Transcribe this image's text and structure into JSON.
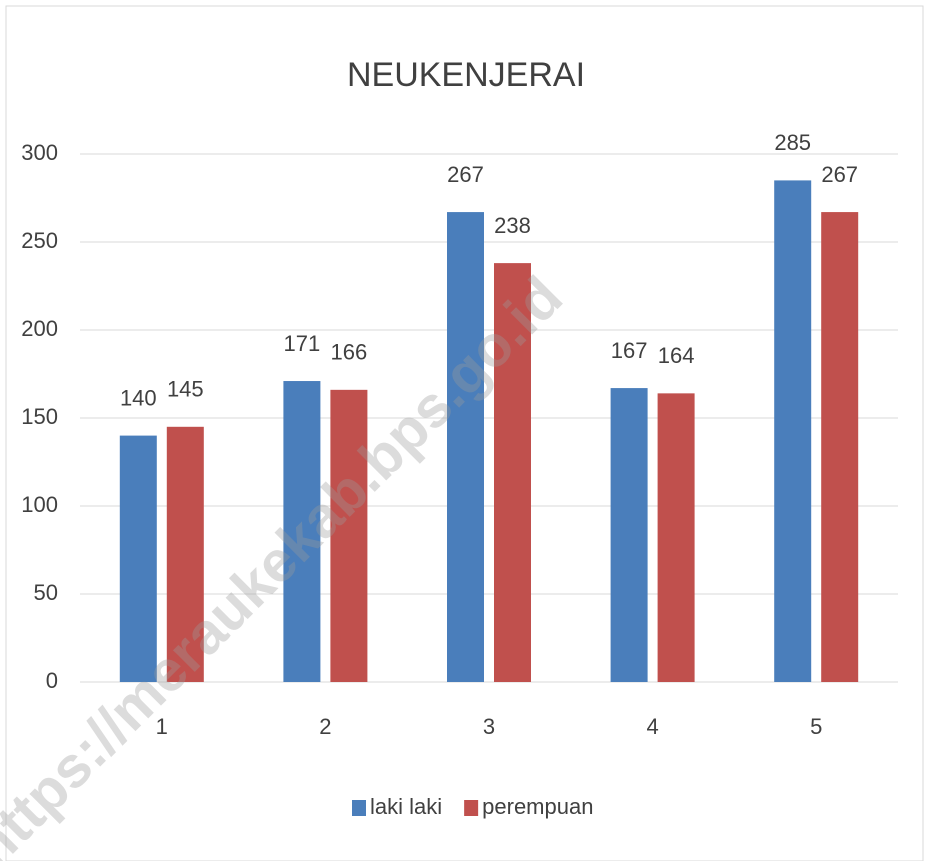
{
  "chart_data": {
    "type": "bar",
    "title": "NEUKENJERAI",
    "categories": [
      "1",
      "2",
      "3",
      "4",
      "5"
    ],
    "series": [
      {
        "name": "laki laki",
        "color": "#4a7ebb",
        "values": [
          140,
          171,
          267,
          167,
          285
        ]
      },
      {
        "name": "perempuan",
        "color": "#c0504d",
        "values": [
          145,
          166,
          238,
          164,
          267
        ]
      }
    ],
    "ylim": [
      0,
      300
    ],
    "yticks": [
      0,
      50,
      100,
      150,
      200,
      250,
      300
    ],
    "grid": true,
    "legend": "bottom",
    "watermark": "https://meraukekab.bps.go.id"
  }
}
